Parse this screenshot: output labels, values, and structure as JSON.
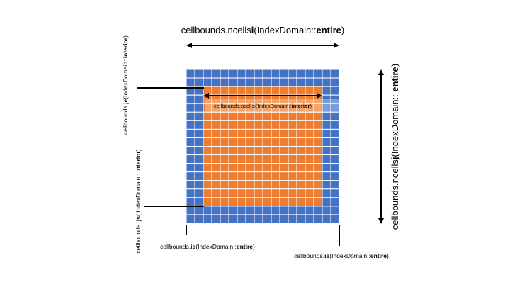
{
  "colors": {
    "ghost": "#4472C4",
    "interior": "#ED7D31",
    "grid_line": "#FFFFFF"
  },
  "grid": {
    "cells_i": 18,
    "cells_j": 18,
    "ghost_width": 2
  },
  "labels": {
    "ncellsi_entire": {
      "prefix": "cellbounds.ncells",
      "bold": "i",
      "suffix": "(IndexDomain::",
      "bold2": "entire",
      "end": ")"
    },
    "ncellsj_entire": {
      "prefix": "cellbounds.ncells",
      "bold": "j",
      "suffix": "(IndexDomain:: ",
      "bold2": "entire",
      "end": ")"
    },
    "ncellsi_interior": {
      "prefix": "cellbounds.ncellsi(IndexDomain::",
      "bold2": "interior",
      "end": ")"
    },
    "je_interior": {
      "prefix": "cellbounds.",
      "bold": "je",
      "suffix": "(IndexDomain::",
      "bold2": "interior",
      "end": ")"
    },
    "js_interior": {
      "prefix": "cellbounds. ",
      "bold": "js",
      "suffix": "( IndexDomain:: ",
      "bold2": "interior",
      "end": ")"
    },
    "is_entire": {
      "prefix": "cellbounds.",
      "bold": "is",
      "suffix": "(IndexDomain::",
      "bold2": "entire",
      "end": ")"
    },
    "ie_entire": {
      "prefix": "cellbounds.",
      "bold": "ie",
      "suffix": "(IndexDomain::",
      "bold2": "entire",
      "end": ")"
    }
  }
}
